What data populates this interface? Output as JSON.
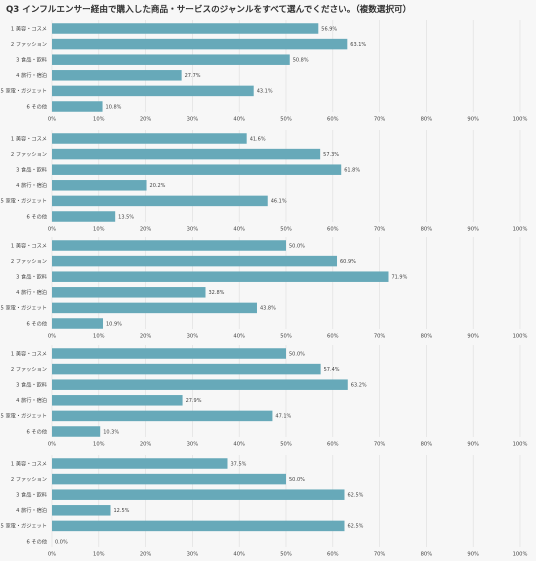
{
  "title": "Q3 インフルエンサー経由で購入した商品・サービスのジャンルをすべて選んでください。（複数選択可）",
  "colors": {
    "bar": "#67a9b9",
    "grid": "#dddddd",
    "text": "#444444",
    "background": "#f7f7f7"
  },
  "chart_data": [
    {
      "type": "bar",
      "orientation": "horizontal",
      "categories": [
        "1 美容・コスメ",
        "2 ファッション",
        "3 食品・飲料",
        "4 旅行・宿泊",
        "5 家電・ガジェット",
        "6 その他"
      ],
      "values": [
        56.9,
        63.1,
        50.8,
        27.7,
        43.1,
        10.8
      ],
      "data_labels": [
        "56.9%",
        "63.1%",
        "50.8%",
        "27.7%",
        "43.1%",
        "10.8%"
      ],
      "xlim": [
        0,
        100
      ],
      "xticks": [
        "0%",
        "10%",
        "20%",
        "30%",
        "40%",
        "50%",
        "60%",
        "70%",
        "80%",
        "90%",
        "100%"
      ],
      "grid": true
    },
    {
      "type": "bar",
      "orientation": "horizontal",
      "categories": [
        "1 美容・コスメ",
        "2 ファッション",
        "3 食品・飲料",
        "4 旅行・宿泊",
        "5 家電・ガジェット",
        "6 その他"
      ],
      "values": [
        41.6,
        57.3,
        61.8,
        20.2,
        46.1,
        13.5
      ],
      "data_labels": [
        "41.6%",
        "57.3%",
        "61.8%",
        "20.2%",
        "46.1%",
        "13.5%"
      ],
      "xlim": [
        0,
        100
      ],
      "xticks": [
        "0%",
        "10%",
        "20%",
        "30%",
        "40%",
        "50%",
        "60%",
        "70%",
        "80%",
        "90%",
        "100%"
      ],
      "grid": true
    },
    {
      "type": "bar",
      "orientation": "horizontal",
      "categories": [
        "1 美容・コスメ",
        "2 ファッション",
        "3 食品・飲料",
        "4 旅行・宿泊",
        "5 家電・ガジェット",
        "6 その他"
      ],
      "values": [
        50.0,
        60.9,
        71.9,
        32.8,
        43.8,
        10.9
      ],
      "data_labels": [
        "50.0%",
        "60.9%",
        "71.9%",
        "32.8%",
        "43.8%",
        "10.9%"
      ],
      "xlim": [
        0,
        100
      ],
      "xticks": [
        "0%",
        "10%",
        "20%",
        "30%",
        "40%",
        "50%",
        "60%",
        "70%",
        "80%",
        "90%",
        "100%"
      ],
      "grid": true
    },
    {
      "type": "bar",
      "orientation": "horizontal",
      "categories": [
        "1 美容・コスメ",
        "2 ファッション",
        "3 食品・飲料",
        "4 旅行・宿泊",
        "5 家電・ガジェット",
        "6 その他"
      ],
      "values": [
        50.0,
        57.4,
        63.2,
        27.9,
        47.1,
        10.3
      ],
      "data_labels": [
        "50.0%",
        "57.4%",
        "63.2%",
        "27.9%",
        "47.1%",
        "10.3%"
      ],
      "xlim": [
        0,
        100
      ],
      "xticks": [
        "0%",
        "10%",
        "20%",
        "30%",
        "40%",
        "50%",
        "60%",
        "70%",
        "80%",
        "90%",
        "100%"
      ],
      "grid": true
    },
    {
      "type": "bar",
      "orientation": "horizontal",
      "categories": [
        "1 美容・コスメ",
        "2 ファッション",
        "3 食品・飲料",
        "4 旅行・宿泊",
        "5 家電・ガジェット",
        "6 その他"
      ],
      "values": [
        37.5,
        50.0,
        62.5,
        12.5,
        62.5,
        0.0
      ],
      "data_labels": [
        "37.5%",
        "50.0%",
        "62.5%",
        "12.5%",
        "62.5%",
        "0.0%"
      ],
      "xlim": [
        0,
        100
      ],
      "xticks": [
        "0%",
        "10%",
        "20%",
        "30%",
        "40%",
        "50%",
        "60%",
        "70%",
        "80%",
        "90%",
        "100%"
      ],
      "grid": true
    }
  ]
}
